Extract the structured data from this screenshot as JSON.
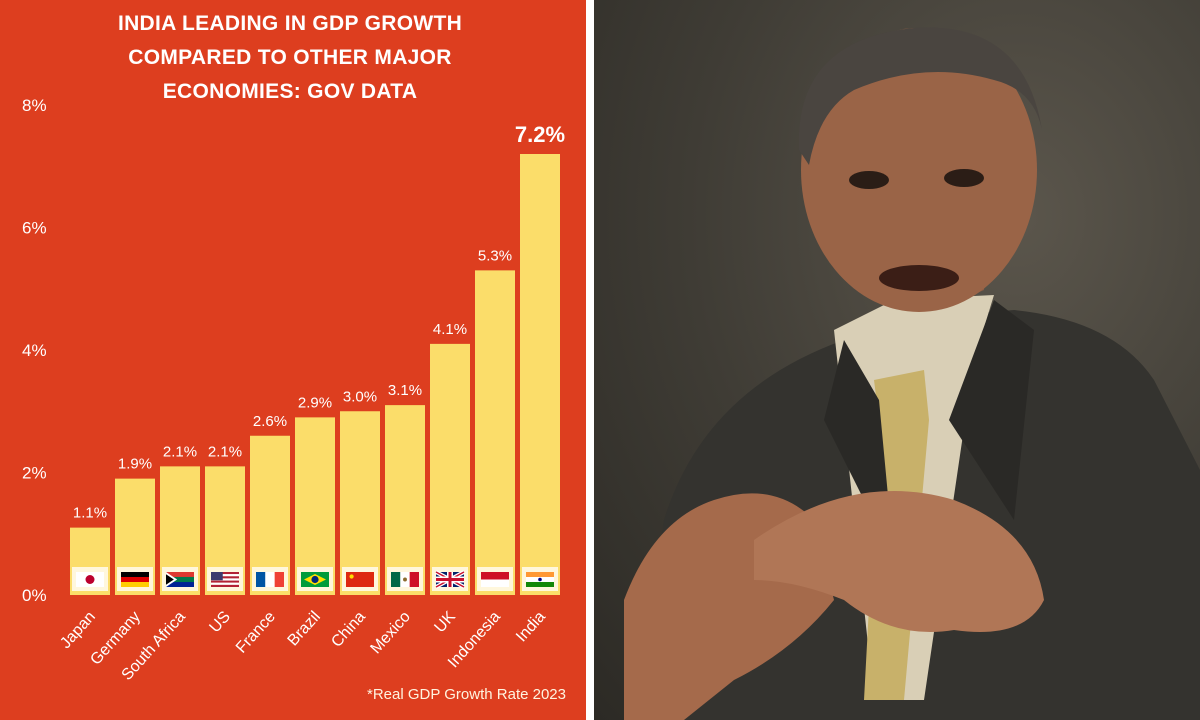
{
  "chart_data": {
    "type": "bar",
    "title_lines": [
      "INDIA LEADING IN GDP GROWTH",
      "COMPARED TO OTHER MAJOR",
      "ECONOMIES: GOV DATA"
    ],
    "categories": [
      "Japan",
      "Germany",
      "South Africa",
      "US",
      "France",
      "Brazil",
      "China",
      "Mexico",
      "UK",
      "Indonesia",
      "India"
    ],
    "values": [
      1.1,
      1.9,
      2.1,
      2.1,
      2.6,
      2.9,
      3.0,
      3.1,
      4.1,
      5.3,
      7.2
    ],
    "value_labels": [
      "1.1%",
      "1.9%",
      "2.1%",
      "2.1%",
      "2.6%",
      "2.9%",
      "3.0%",
      "3.1%",
      "4.1%",
      "5.3%",
      "7.2%"
    ],
    "highlight_index": 10,
    "flags": [
      "japan-flag-icon",
      "germany-flag-icon",
      "south-africa-flag-icon",
      "us-flag-icon",
      "france-flag-icon",
      "brazil-flag-icon",
      "china-flag-icon",
      "mexico-flag-icon",
      "uk-flag-icon",
      "indonesia-flag-icon",
      "india-flag-icon"
    ],
    "yticks": [
      0,
      2,
      4,
      6,
      8
    ],
    "ytick_labels": [
      "0%",
      "2%",
      "4%",
      "6%",
      "8%"
    ],
    "ylim": [
      0,
      8
    ],
    "grid": false,
    "note": "*Real GDP Growth Rate 2023",
    "colors": {
      "background": "#dd3e1f",
      "bar": "#fbdd6a",
      "text": "#ffffff"
    }
  },
  "photo": {
    "subject": "man-in-suit-speaking-photo"
  }
}
